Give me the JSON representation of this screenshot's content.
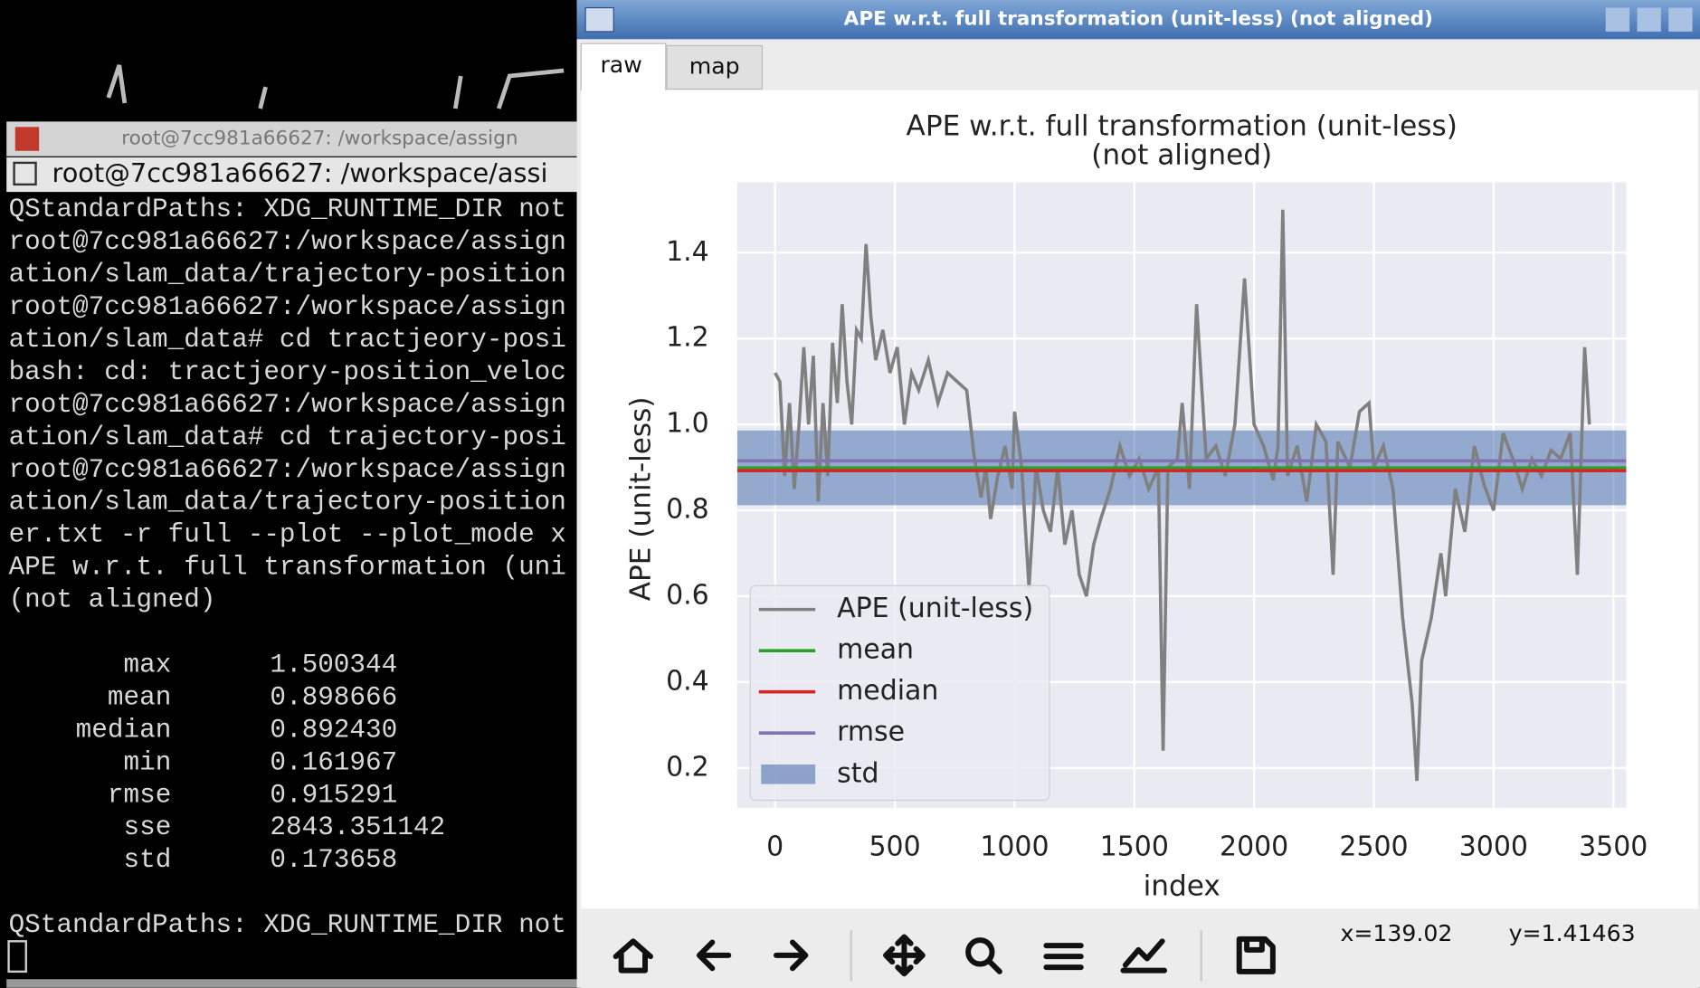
{
  "terminal": {
    "window_title": "root@7cc981a66627: /workspace/assign",
    "tab_title": "root@7cc981a66627: /workspace/assi",
    "lines": [
      "QStandardPaths: XDG_RUNTIME_DIR not",
      "root@7cc981a66627:/workspace/assign",
      "ation/slam_data/trajectory-position",
      "root@7cc981a66627:/workspace/assign",
      "ation/slam_data# cd tractjeory-posi",
      "bash: cd: tractjeory-position_veloc",
      "root@7cc981a66627:/workspace/assign",
      "ation/slam_data# cd trajectory-posi",
      "root@7cc981a66627:/workspace/assign",
      "ation/slam_data/trajectory-position",
      "er.txt -r full --plot --plot_mode x",
      "APE w.r.t. full transformation (uni",
      "(not aligned)"
    ],
    "stats": [
      [
        "max",
        "1.500344"
      ],
      [
        "mean",
        "0.898666"
      ],
      [
        "median",
        "0.892430"
      ],
      [
        "min",
        "0.161967"
      ],
      [
        "rmse",
        "0.915291"
      ],
      [
        "sse",
        "2843.351142"
      ],
      [
        "std",
        "0.173658"
      ]
    ],
    "footer": "QStandardPaths: XDG_RUNTIME_DIR not"
  },
  "window": {
    "title": "APE w.r.t. full transformation (unit-less) (not aligned)",
    "tabs": [
      "raw",
      "map"
    ],
    "status_x": "x=139.02",
    "status_y": "y=1.41463"
  },
  "chart_data": {
    "type": "line",
    "title": "APE w.r.t. full transformation (unit-less)",
    "subtitle": "(not aligned)",
    "x_label": "index",
    "y_label": "APE (unit-less)",
    "xlim": [
      -158,
      3554
    ],
    "ylim": [
      0.107,
      1.564
    ],
    "xticks": [
      0,
      500,
      1000,
      1500,
      2000,
      2500,
      3000,
      3500
    ],
    "yticks": [
      0.2,
      0.4,
      0.6,
      0.8,
      {
        "value": 1,
        "label": "1.0"
      },
      1.2,
      1.4
    ],
    "grid": true,
    "legend": "lower left",
    "series": [
      {
        "name": "APE (unit-less)",
        "color": "#808080",
        "x": [
          0,
          20,
          40,
          60,
          80,
          100,
          120,
          140,
          160,
          180,
          200,
          220,
          240,
          260,
          280,
          300,
          320,
          340,
          360,
          380,
          400,
          420,
          450,
          480,
          510,
          540,
          570,
          600,
          640,
          680,
          720,
          760,
          800,
          830,
          860,
          880,
          900,
          930,
          960,
          990,
          1000,
          1030,
          1060,
          1090,
          1120,
          1150,
          1180,
          1210,
          1240,
          1270,
          1300,
          1330,
          1360,
          1400,
          1440,
          1480,
          1520,
          1560,
          1600,
          1620,
          1640,
          1680,
          1700,
          1730,
          1760,
          1800,
          1840,
          1880,
          1920,
          1960,
          2000,
          2040,
          2080,
          2100,
          2120,
          2140,
          2180,
          2220,
          2260,
          2300,
          2330,
          2350,
          2400,
          2440,
          2480,
          2500,
          2540,
          2580,
          2620,
          2660,
          2680,
          2700,
          2740,
          2780,
          2800,
          2840,
          2880,
          2920,
          2960,
          3000,
          3040,
          3080,
          3120,
          3160,
          3200,
          3240,
          3280,
          3320,
          3350,
          3380,
          3400
        ],
        "values": [
          1.12,
          1.1,
          0.88,
          1.05,
          0.85,
          1.0,
          1.18,
          1.0,
          1.16,
          0.82,
          1.05,
          0.88,
          1.19,
          1.05,
          1.28,
          1.1,
          1.0,
          1.22,
          1.2,
          1.42,
          1.25,
          1.15,
          1.22,
          1.12,
          1.18,
          1.0,
          1.12,
          1.08,
          1.15,
          1.05,
          1.12,
          1.1,
          1.08,
          0.93,
          0.83,
          0.9,
          0.78,
          0.88,
          0.95,
          0.85,
          1.03,
          0.9,
          0.62,
          0.9,
          0.8,
          0.75,
          0.9,
          0.72,
          0.8,
          0.65,
          0.6,
          0.72,
          0.78,
          0.85,
          0.95,
          0.88,
          0.92,
          0.85,
          0.9,
          0.24,
          0.9,
          0.92,
          1.05,
          0.85,
          1.28,
          0.92,
          0.95,
          0.88,
          1.0,
          1.34,
          1.0,
          0.95,
          0.87,
          0.95,
          1.5,
          0.88,
          0.95,
          0.82,
          1.0,
          0.96,
          0.65,
          0.96,
          0.9,
          1.03,
          1.05,
          0.9,
          0.95,
          0.85,
          0.55,
          0.35,
          0.17,
          0.45,
          0.55,
          0.7,
          0.6,
          0.85,
          0.75,
          0.95,
          0.86,
          0.8,
          0.98,
          0.92,
          0.85,
          0.92,
          0.88,
          0.94,
          0.92,
          0.98,
          0.65,
          1.18,
          1.0
        ]
      },
      {
        "name": "mean",
        "color": "#2ca02c",
        "value": 0.898666
      },
      {
        "name": "median",
        "color": "#d62728",
        "value": 0.89243
      },
      {
        "name": "rmse",
        "color": "#8172b2",
        "value": 0.915291
      },
      {
        "name": "std",
        "color": "#4c72b0",
        "range": [
          0.812,
          0.986
        ]
      }
    ]
  }
}
